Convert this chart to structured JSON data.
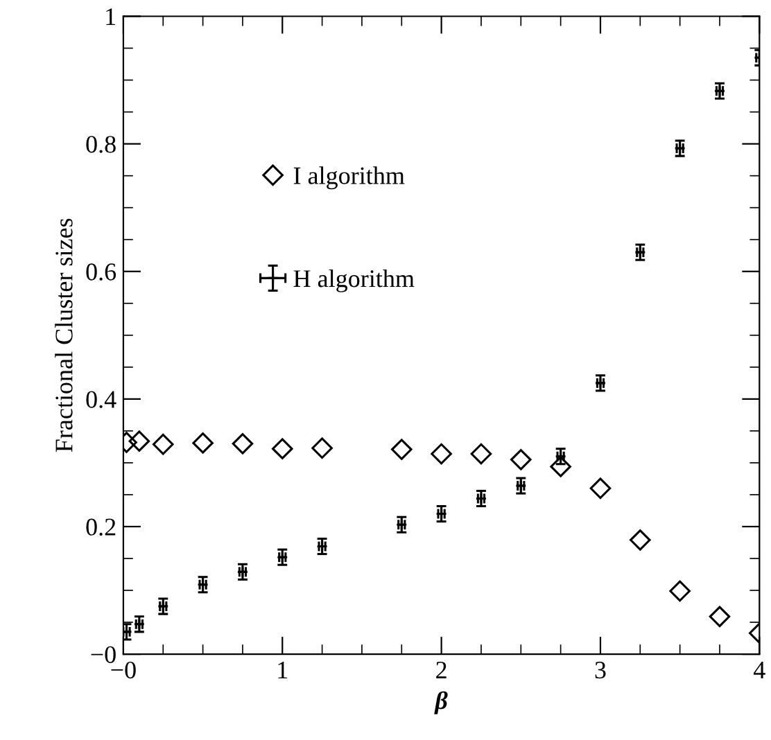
{
  "chart_data": {
    "type": "scatter",
    "xlabel": "β",
    "ylabel": "Fractional Cluster sizes",
    "xlim": [
      0,
      4
    ],
    "ylim": [
      0,
      1
    ],
    "xticks": [
      {
        "value": 0,
        "label": "−0"
      },
      1,
      2,
      3,
      4
    ],
    "yticks": [
      {
        "value": 0,
        "label": "−0"
      },
      0.2,
      0.4,
      0.6,
      0.8,
      1
    ],
    "grid": false,
    "legend": "top left",
    "series": [
      {
        "name": "I algorithm",
        "color": "#000000",
        "marker": "diamond",
        "x": [
          0.02,
          0.1,
          0.25,
          0.5,
          0.75,
          1.0,
          1.25,
          1.75,
          2.0,
          2.25,
          2.5,
          2.75,
          3.0,
          3.25,
          3.5,
          3.75,
          4.0
        ],
        "values": [
          0.332,
          0.334,
          0.329,
          0.331,
          0.33,
          0.322,
          0.323,
          0.321,
          0.314,
          0.314,
          0.305,
          0.294,
          0.26,
          0.179,
          0.099,
          0.059,
          0.033
        ]
      },
      {
        "name": "H algorithm",
        "color": "#000000",
        "marker": "cross",
        "x": [
          0.02,
          0.1,
          0.25,
          0.5,
          0.75,
          1.0,
          1.25,
          1.75,
          2.0,
          2.25,
          2.5,
          2.75,
          3.0,
          3.25,
          3.5,
          3.75,
          4.0
        ],
        "values": [
          0.035,
          0.047,
          0.075,
          0.109,
          0.129,
          0.152,
          0.169,
          0.203,
          0.22,
          0.244,
          0.264,
          0.31,
          0.425,
          0.63,
          0.793,
          0.883,
          0.935
        ],
        "errors": [
          0.012,
          0.012,
          0.012,
          0.012,
          0.012,
          0.012,
          0.012,
          0.012,
          0.012,
          0.012,
          0.012,
          0.012,
          0.012,
          0.012,
          0.012,
          0.012,
          0.012
        ],
        "xerrors": [
          0.02,
          0.02,
          0.02,
          0.02,
          0.02,
          0.02,
          0.02,
          0.02,
          0.02,
          0.02,
          0.02,
          0.02,
          0.02,
          0.02,
          0.02,
          0.02,
          0.02
        ]
      }
    ]
  }
}
